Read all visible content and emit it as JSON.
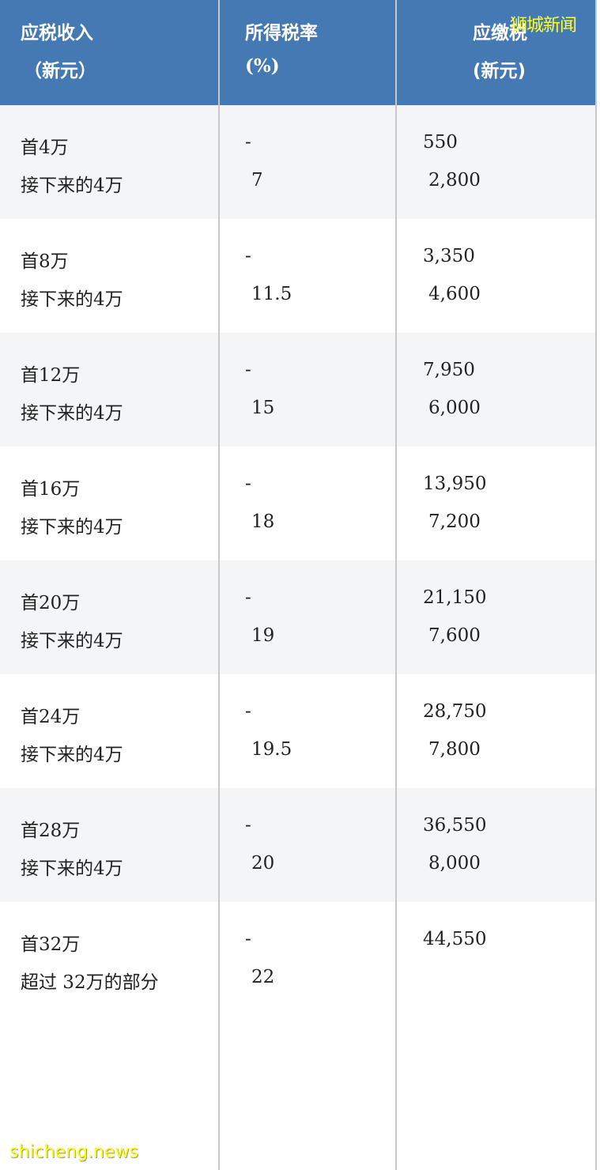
{
  "header": {
    "col1": {
      "line1": "应税收入",
      "line2": "（新元）"
    },
    "col2": {
      "line1": "所得税率",
      "line2": "(%)"
    },
    "col3": {
      "line1": "应缴税",
      "line2": "(新元)"
    }
  },
  "rows": [
    {
      "income1": "首4万",
      "income2": "接下来的4万",
      "rate1": "-",
      "rate2": "7",
      "tax1": "550",
      "tax2": "2,800"
    },
    {
      "income1": "首8万",
      "income2": "接下来的4万",
      "rate1": "-",
      "rate2": "11.5",
      "tax1": "3,350",
      "tax2": "4,600"
    },
    {
      "income1": "首12万",
      "income2": "接下来的4万",
      "rate1": "-",
      "rate2": "15",
      "tax1": "7,950",
      "tax2": "6,000"
    },
    {
      "income1": "首16万",
      "income2": "接下来的4万",
      "rate1": "-",
      "rate2": "18",
      "tax1": "13,950",
      "tax2": "7,200"
    },
    {
      "income1": "首20万",
      "income2": "接下来的4万",
      "rate1": "-",
      "rate2": "19",
      "tax1": "21,150",
      "tax2": "7,600"
    },
    {
      "income1": "首24万",
      "income2": "接下来的4万",
      "rate1": "-",
      "rate2": "19.5",
      "tax1": "28,750",
      "tax2": "7,800"
    },
    {
      "income1": "首28万",
      "income2": "接下来的4万",
      "rate1": "-",
      "rate2": "20",
      "tax1": "36,550",
      "tax2": "8,000"
    },
    {
      "income1": "首32万",
      "income2": "超过 32万的部分",
      "rate1": "-",
      "rate2": "22",
      "tax1": "44,550",
      "tax2": ""
    }
  ],
  "watermarks": {
    "top": "狮城新闻",
    "bottom": "shicheng.news"
  },
  "colors": {
    "header_bg": "#4479b4",
    "alt_row_bg": "#f4f5f7",
    "watermark": "#ffff00"
  }
}
